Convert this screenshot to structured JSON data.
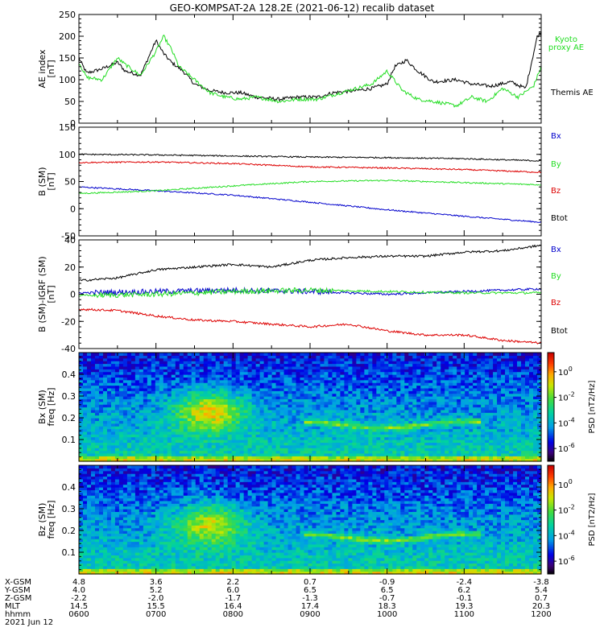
{
  "title": "GEO-KOMPSAT-2A 128.2E (2021-06-12) recalib dataset",
  "colors": {
    "black": "#000000",
    "green": "#22dd22",
    "blue": "#0000cc",
    "red": "#dd0000"
  },
  "chart_data": [
    {
      "type": "line",
      "panel": "ae",
      "ylabel": [
        "AE index",
        "[nT]"
      ],
      "ylim": [
        0,
        250
      ],
      "yticks": [
        0,
        50,
        100,
        150,
        200,
        250
      ],
      "xlim": [
        6,
        12
      ],
      "x_unit": "hours UT",
      "series": [
        {
          "name": "Themis AE",
          "color": "#000000",
          "points": [
            [
              6.0,
              150
            ],
            [
              6.1,
              115
            ],
            [
              6.3,
              125
            ],
            [
              6.5,
              140
            ],
            [
              6.6,
              120
            ],
            [
              6.8,
              110
            ],
            [
              6.9,
              150
            ],
            [
              7.0,
              190
            ],
            [
              7.1,
              160
            ],
            [
              7.2,
              140
            ],
            [
              7.35,
              120
            ],
            [
              7.5,
              90
            ],
            [
              7.7,
              75
            ],
            [
              7.9,
              70
            ],
            [
              8.1,
              70
            ],
            [
              8.3,
              60
            ],
            [
              8.6,
              55
            ],
            [
              8.85,
              60
            ],
            [
              9.1,
              60
            ],
            [
              9.3,
              70
            ],
            [
              9.6,
              75
            ],
            [
              9.8,
              80
            ],
            [
              10.0,
              90
            ],
            [
              10.1,
              130
            ],
            [
              10.25,
              145
            ],
            [
              10.4,
              120
            ],
            [
              10.6,
              95
            ],
            [
              10.9,
              100
            ],
            [
              11.1,
              90
            ],
            [
              11.35,
              85
            ],
            [
              11.6,
              95
            ],
            [
              11.8,
              80
            ],
            [
              11.95,
              200
            ],
            [
              12.0,
              210
            ]
          ]
        },
        {
          "name": "Kyoto proxy AE",
          "label_lines": [
            "Kyoto",
            "proxy AE"
          ],
          "color": "#22dd22",
          "points": [
            [
              6.0,
              140
            ],
            [
              6.1,
              105
            ],
            [
              6.3,
              100
            ],
            [
              6.5,
              150
            ],
            [
              6.6,
              135
            ],
            [
              6.8,
              110
            ],
            [
              7.0,
              165
            ],
            [
              7.1,
              200
            ],
            [
              7.2,
              170
            ],
            [
              7.3,
              130
            ],
            [
              7.5,
              100
            ],
            [
              7.7,
              70
            ],
            [
              7.9,
              60
            ],
            [
              8.1,
              55
            ],
            [
              8.3,
              60
            ],
            [
              8.6,
              50
            ],
            [
              8.85,
              55
            ],
            [
              9.1,
              55
            ],
            [
              9.3,
              65
            ],
            [
              9.6,
              80
            ],
            [
              9.8,
              90
            ],
            [
              10.0,
              120
            ],
            [
              10.2,
              75
            ],
            [
              10.4,
              55
            ],
            [
              10.6,
              50
            ],
            [
              10.9,
              40
            ],
            [
              11.1,
              60
            ],
            [
              11.3,
              50
            ],
            [
              11.5,
              80
            ],
            [
              11.7,
              60
            ],
            [
              11.9,
              85
            ],
            [
              12.0,
              130
            ]
          ]
        }
      ]
    },
    {
      "type": "line",
      "panel": "b",
      "ylabel": [
        "B (SM)",
        "[nT]"
      ],
      "ylim": [
        -50,
        150
      ],
      "yticks": [
        -50,
        0,
        50,
        100,
        150
      ],
      "xlim": [
        6,
        12
      ],
      "series": [
        {
          "name": "Bx",
          "color": "#0000cc",
          "points": [
            [
              6,
              40
            ],
            [
              7,
              33
            ],
            [
              8,
              25
            ],
            [
              9,
              12
            ],
            [
              10,
              -2
            ],
            [
              11,
              -14
            ],
            [
              12,
              -25
            ]
          ]
        },
        {
          "name": "By",
          "color": "#22dd22",
          "points": [
            [
              6,
              28
            ],
            [
              7,
              33
            ],
            [
              8,
              42
            ],
            [
              9,
              50
            ],
            [
              10,
              52
            ],
            [
              11,
              48
            ],
            [
              12,
              44
            ]
          ]
        },
        {
          "name": "Bz",
          "color": "#dd0000",
          "points": [
            [
              6,
              85
            ],
            [
              7,
              86
            ],
            [
              8,
              83
            ],
            [
              9,
              77
            ],
            [
              10,
              75
            ],
            [
              11,
              72
            ],
            [
              12,
              67
            ]
          ]
        },
        {
          "name": "Btot",
          "color": "#000000",
          "points": [
            [
              6,
              100
            ],
            [
              7,
              99
            ],
            [
              8,
              97
            ],
            [
              9,
              95
            ],
            [
              10,
              94
            ],
            [
              11,
              92
            ],
            [
              12,
              88
            ]
          ]
        }
      ]
    },
    {
      "type": "line",
      "panel": "db",
      "ylabel": [
        "B (SM)-IGRF (SM)",
        "[nT]"
      ],
      "ylim": [
        -40,
        40
      ],
      "yticks": [
        -40,
        -20,
        0,
        20,
        40
      ],
      "xlim": [
        6,
        12
      ],
      "series": [
        {
          "name": "Bx",
          "color": "#0000cc",
          "points": [
            [
              6,
              1
            ],
            [
              7,
              2
            ],
            [
              8,
              3
            ],
            [
              9,
              2
            ],
            [
              10,
              0
            ],
            [
              11,
              2
            ],
            [
              12,
              4
            ]
          ]
        },
        {
          "name": "By",
          "color": "#22dd22",
          "points": [
            [
              6,
              -1
            ],
            [
              7,
              0
            ],
            [
              8,
              2
            ],
            [
              9,
              3
            ],
            [
              10,
              2
            ],
            [
              11,
              1
            ],
            [
              12,
              1
            ]
          ]
        },
        {
          "name": "Bz",
          "color": "#dd0000",
          "points": [
            [
              6,
              -11
            ],
            [
              6.5,
              -12
            ],
            [
              7,
              -16
            ],
            [
              7.5,
              -19
            ],
            [
              8,
              -20
            ],
            [
              8.5,
              -22
            ],
            [
              9,
              -24
            ],
            [
              9.5,
              -22
            ],
            [
              10,
              -27
            ],
            [
              10.5,
              -30
            ],
            [
              11,
              -30
            ],
            [
              11.5,
              -34
            ],
            [
              12,
              -36
            ]
          ]
        },
        {
          "name": "Btot",
          "color": "#000000",
          "points": [
            [
              6,
              10
            ],
            [
              6.5,
              12
            ],
            [
              7,
              18
            ],
            [
              7.5,
              20
            ],
            [
              8,
              22
            ],
            [
              8.5,
              20
            ],
            [
              9,
              25
            ],
            [
              9.5,
              27
            ],
            [
              10,
              28
            ],
            [
              10.5,
              28
            ],
            [
              11,
              31
            ],
            [
              11.5,
              32
            ],
            [
              12,
              36
            ]
          ]
        }
      ]
    },
    {
      "type": "heatmap",
      "panel": "bx_spec",
      "ylabel": [
        "Bx (SM)",
        "freq [Hz]"
      ],
      "ylim": [
        0,
        0.5
      ],
      "yticks": [
        0.1,
        0.2,
        0.3,
        0.4
      ],
      "xlim": [
        6,
        12
      ],
      "colorbar_label": "PSD [nT2/Hz]",
      "colorbar_ticks": [
        "10^0",
        "10^-2",
        "10^-4",
        "10^-6"
      ],
      "colorbar_tick_values": [
        0,
        -2,
        -4,
        -6
      ],
      "colorbar_range": [
        -7,
        1.5
      ]
    },
    {
      "type": "heatmap",
      "panel": "bz_spec",
      "ylabel": [
        "Bz (SM)",
        "freq [Hz]"
      ],
      "ylim": [
        0,
        0.5
      ],
      "yticks": [
        0.1,
        0.2,
        0.3,
        0.4
      ],
      "xlim": [
        6,
        12
      ],
      "colorbar_label": "PSD [nT2/Hz]",
      "colorbar_ticks": [
        "10^0",
        "10^-2",
        "10^-4",
        "10^-6"
      ],
      "colorbar_tick_values": [
        0,
        -2,
        -4,
        -6
      ],
      "colorbar_range": [
        -7,
        1.5
      ]
    }
  ],
  "ephemeris": {
    "row_labels": [
      "X-GSM",
      "Y-GSM",
      "Z-GSM",
      "MLT",
      "hhmm"
    ],
    "date": "2021 Jun 12",
    "columns": [
      [
        "4.8",
        "4.0",
        "-2.2",
        "14.5",
        "0600"
      ],
      [
        "3.6",
        "5.2",
        "-2.0",
        "15.5",
        "0700"
      ],
      [
        "2.2",
        "6.0",
        "-1.7",
        "16.4",
        "0800"
      ],
      [
        "0.7",
        "6.5",
        "-1.3",
        "17.4",
        "0900"
      ],
      [
        "-0.9",
        "6.5",
        "-0.7",
        "18.3",
        "1000"
      ],
      [
        "-2.4",
        "6.2",
        "-0.1",
        "19.3",
        "1100"
      ],
      [
        "-3.8",
        "5.4",
        "0.7",
        "20.3",
        "1200"
      ]
    ]
  }
}
